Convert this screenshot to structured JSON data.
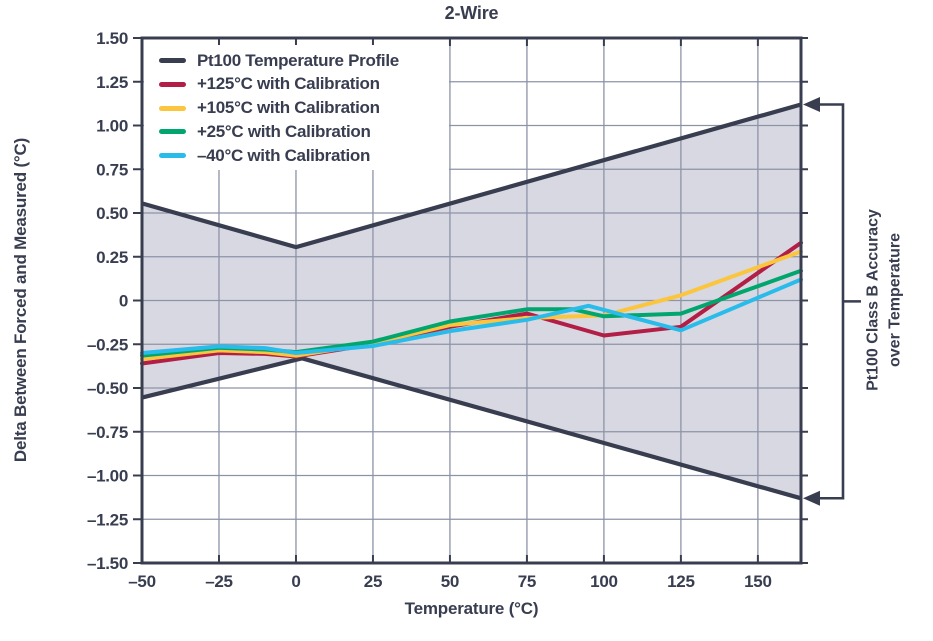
{
  "title": "2-Wire",
  "colors": {
    "ink": "#383d50",
    "grid": "#8d93a7",
    "band_fill": "#d8d8e2",
    "crimson": "#b21e45",
    "yellow": "#fbc53d",
    "green": "#00a66e",
    "cyan": "#29bceb",
    "background": "#ffffff"
  },
  "chart_data": {
    "type": "line",
    "title": "2-Wire",
    "xlabel": "Temperature (°C)",
    "ylabel": "Delta Between Forced and Measured (°C)",
    "xlim": [
      -50,
      164
    ],
    "ylim": [
      -1.5,
      1.5
    ],
    "grid": true,
    "x_ticks": {
      "values": [
        -50,
        -25,
        0,
        25,
        50,
        75,
        100,
        125,
        150
      ],
      "labels": [
        "–50",
        "–25",
        "0",
        "25",
        "50",
        "75",
        "100",
        "125",
        "150"
      ]
    },
    "y_ticks": {
      "values": [
        1.5,
        1.25,
        1.0,
        0.75,
        0.5,
        0.25,
        0,
        -0.25,
        -0.5,
        -0.75,
        -1.0,
        -1.25,
        -1.5
      ],
      "labels": [
        "1.50",
        "1.25",
        "1.00",
        "0.75",
        "0.50",
        "0.25",
        "0",
        "–0.25",
        "–0.50",
        "–0.75",
        "–1.00",
        "–1.25",
        "–1.50"
      ]
    },
    "band": {
      "name": "Pt100 Temperature Profile",
      "fill": "#d8d8e2",
      "stroke": "#383d50",
      "upper": [
        [
          -50,
          0.555
        ],
        [
          0,
          0.305
        ],
        [
          164,
          1.12
        ]
      ],
      "lower": [
        [
          -50,
          -0.555
        ],
        [
          2,
          -0.33
        ],
        [
          164,
          -1.13
        ]
      ]
    },
    "series": [
      {
        "name": "+125C-with-calibration",
        "color": "#b21e45",
        "points": [
          [
            -50,
            -0.36
          ],
          [
            -25,
            -0.3
          ],
          [
            -10,
            -0.305
          ],
          [
            0,
            -0.32
          ],
          [
            25,
            -0.25
          ],
          [
            50,
            -0.15
          ],
          [
            75,
            -0.075
          ],
          [
            100,
            -0.2
          ],
          [
            125,
            -0.15
          ],
          [
            164,
            0.33
          ]
        ]
      },
      {
        "name": "+105C-with-calibration",
        "color": "#fbc53d",
        "points": [
          [
            -50,
            -0.335
          ],
          [
            -25,
            -0.285
          ],
          [
            -10,
            -0.295
          ],
          [
            0,
            -0.315
          ],
          [
            25,
            -0.245
          ],
          [
            50,
            -0.14
          ],
          [
            75,
            -0.1
          ],
          [
            100,
            -0.085
          ],
          [
            125,
            0.03
          ],
          [
            164,
            0.28
          ]
        ]
      },
      {
        "name": "+25C-with-calibration",
        "color": "#00a66e",
        "points": [
          [
            -50,
            -0.315
          ],
          [
            -25,
            -0.27
          ],
          [
            -10,
            -0.28
          ],
          [
            0,
            -0.295
          ],
          [
            25,
            -0.235
          ],
          [
            50,
            -0.12
          ],
          [
            75,
            -0.05
          ],
          [
            90,
            -0.05
          ],
          [
            100,
            -0.09
          ],
          [
            125,
            -0.075
          ],
          [
            164,
            0.17
          ]
        ]
      },
      {
        "name": "-40C-with-calibration",
        "color": "#29bceb",
        "points": [
          [
            -50,
            -0.3
          ],
          [
            -25,
            -0.262
          ],
          [
            -10,
            -0.272
          ],
          [
            0,
            -0.3
          ],
          [
            25,
            -0.26
          ],
          [
            50,
            -0.175
          ],
          [
            75,
            -0.11
          ],
          [
            95,
            -0.03
          ],
          [
            125,
            -0.17
          ],
          [
            164,
            0.12
          ]
        ]
      }
    ],
    "legend": {
      "position": "top-left",
      "items": [
        {
          "label": "Pt100 Temperature Profile",
          "color": "#383d50"
        },
        {
          "label": "+125°C with Calibration",
          "color": "#b21e45"
        },
        {
          "label": "+105°C with Calibration",
          "color": "#fbc53d"
        },
        {
          "label": "+25°C with Calibration",
          "color": "#00a66e"
        },
        {
          "label": "–40°C with Calibration",
          "color": "#29bceb"
        }
      ]
    },
    "annotation": {
      "line1": "Pt100 Class B Accuracy",
      "line2": "over Temperature"
    }
  }
}
